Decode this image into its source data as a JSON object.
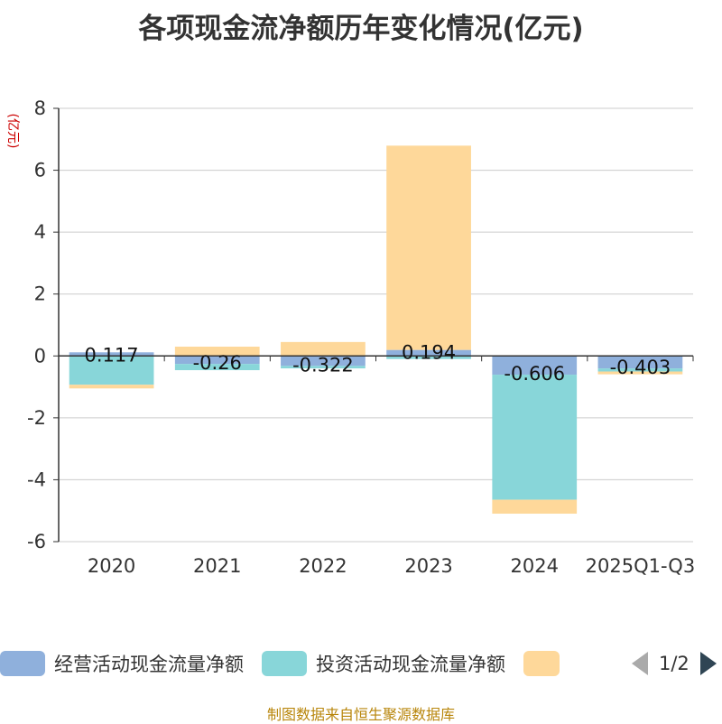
{
  "chart_data": {
    "type": "bar",
    "stacked": true,
    "title": "各项现金流净额历年变化情况(亿元)",
    "ylabel": "(亿元)",
    "ylim": [
      -6,
      8
    ],
    "yticks": [
      -6,
      -4,
      -2,
      0,
      2,
      4,
      6,
      8
    ],
    "categories": [
      "2020",
      "2021",
      "2022",
      "2023",
      "2024",
      "2025Q1-Q3"
    ],
    "series": [
      {
        "name": "经营活动现金流量净额",
        "color": "#8fb0dc",
        "values": [
          0.117,
          -0.26,
          -0.322,
          0.194,
          -0.606,
          -0.403
        ],
        "labeled": true
      },
      {
        "name": "投资活动现金流量净额",
        "color": "#88d6d9",
        "values": [
          -0.93,
          -0.2,
          -0.08,
          -0.1,
          -4.04,
          -0.1
        ]
      },
      {
        "name": "",
        "color": "#fed89a",
        "values": [
          -0.12,
          0.3,
          0.45,
          6.6,
          -0.45,
          -0.09
        ]
      }
    ],
    "label_values": [
      "0.117",
      "-0.26",
      "-0.322",
      "0.194",
      "-0.606",
      "-0.403"
    ]
  },
  "legend": {
    "item1": "经营活动现金流量净额",
    "item2": "投资活动现金流量净额",
    "page": "1/2"
  },
  "source": "制图数据来自恒生聚源数据库"
}
